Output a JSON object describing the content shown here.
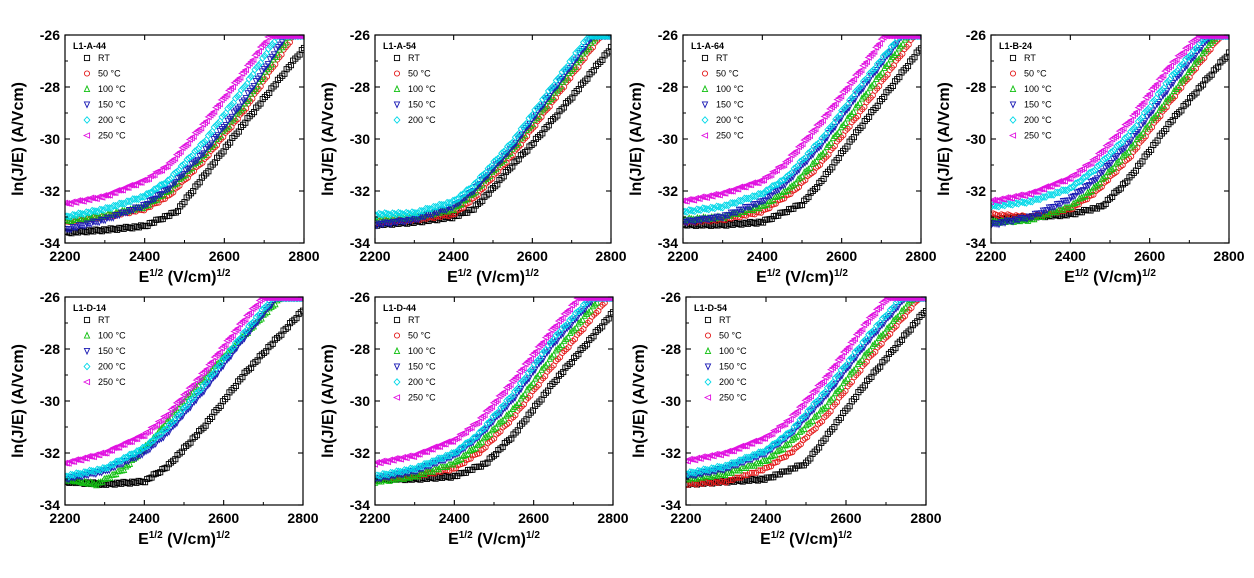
{
  "figure": {
    "x_label": "E",
    "x_label_sup": "1/2",
    "x_label_unit": " (V/cm)",
    "x_label_unit_sup": "1/2",
    "y_label": "ln(J/E) (A/Vcm)"
  },
  "legend_labels": {
    "RT": "RT",
    "50": "50 °C",
    "100": "100 °C",
    "150": "150 °C",
    "200": "200 °C",
    "250": "250 °C"
  },
  "colors": {
    "RT": "#000000",
    "50": "#e41a1a",
    "100": "#10c010",
    "150": "#1a1ab4",
    "200": "#00d8e8",
    "250": "#e010e0"
  },
  "chart_data": [
    {
      "type": "scatter",
      "title": "L1-A-44",
      "xlabel": "E1/2 (V/cm)1/2",
      "ylabel": "ln(J/E) (A/Vcm)",
      "xlim": [
        2200,
        2800
      ],
      "ylim": [
        -34,
        -26
      ],
      "xticks": [
        2200,
        2400,
        2600,
        2800
      ],
      "yticks": [
        -34,
        -32,
        -30,
        -28,
        -26
      ],
      "legend": "top-left",
      "series": [
        {
          "key": "RT",
          "x": [
            2200,
            2300,
            2400,
            2480,
            2550,
            2650,
            2800
          ],
          "y": [
            -33.6,
            -33.5,
            -33.35,
            -32.8,
            -31.4,
            -29.4,
            -26.5
          ]
        },
        {
          "key": "50",
          "x": [
            2200,
            2300,
            2400,
            2460,
            2550,
            2650,
            2775
          ],
          "y": [
            -33.2,
            -33.0,
            -32.7,
            -32.2,
            -30.8,
            -28.9,
            -26.0
          ]
        },
        {
          "key": "100",
          "x": [
            2200,
            2300,
            2400,
            2460,
            2550,
            2650,
            2765
          ],
          "y": [
            -33.15,
            -32.95,
            -32.6,
            -32.0,
            -30.6,
            -28.7,
            -26.0
          ]
        },
        {
          "key": "150",
          "x": [
            2200,
            2300,
            2400,
            2460,
            2550,
            2650,
            2755
          ],
          "y": [
            -33.5,
            -33.1,
            -32.55,
            -31.9,
            -30.5,
            -28.5,
            -26.0
          ]
        },
        {
          "key": "200",
          "x": [
            2200,
            2300,
            2400,
            2460,
            2550,
            2650,
            2735
          ],
          "y": [
            -33.0,
            -32.7,
            -32.2,
            -31.6,
            -30.1,
            -28.0,
            -26.0
          ]
        },
        {
          "key": "250",
          "x": [
            2200,
            2300,
            2400,
            2460,
            2550,
            2650,
            2715
          ],
          "y": [
            -32.5,
            -32.2,
            -31.6,
            -31.0,
            -29.4,
            -27.4,
            -26.0
          ]
        }
      ]
    },
    {
      "type": "scatter",
      "title": "L1-A-54",
      "xlabel": "E1/2 (V/cm)1/2",
      "ylabel": "ln(J/E) (A/Vcm)",
      "xlim": [
        2200,
        2800
      ],
      "ylim": [
        -34,
        -26
      ],
      "xticks": [
        2200,
        2400,
        2600,
        2800
      ],
      "yticks": [
        -34,
        -32,
        -30,
        -28,
        -26
      ],
      "legend": "top-left",
      "series": [
        {
          "key": "RT",
          "x": [
            2200,
            2300,
            2400,
            2450,
            2500,
            2550,
            2600,
            2700,
            2800
          ],
          "y": [
            -33.3,
            -33.2,
            -33.0,
            -32.7,
            -31.9,
            -31.0,
            -30.2,
            -28.4,
            -26.5
          ]
        },
        {
          "key": "50",
          "x": [
            2200,
            2300,
            2400,
            2450,
            2550,
            2650,
            2775
          ],
          "y": [
            -33.2,
            -33.1,
            -32.9,
            -32.3,
            -30.6,
            -28.6,
            -26.0
          ]
        },
        {
          "key": "100",
          "x": [
            2200,
            2300,
            2400,
            2450,
            2550,
            2650,
            2765
          ],
          "y": [
            -33.1,
            -33.0,
            -32.7,
            -32.1,
            -30.4,
            -28.4,
            -26.0
          ]
        },
        {
          "key": "150",
          "x": [
            2200,
            2300,
            2400,
            2450,
            2550,
            2650,
            2755
          ],
          "y": [
            -33.3,
            -33.1,
            -32.6,
            -32.0,
            -30.3,
            -28.2,
            -26.0
          ]
        },
        {
          "key": "200",
          "x": [
            2200,
            2300,
            2400,
            2450,
            2550,
            2650,
            2745
          ],
          "y": [
            -32.9,
            -32.85,
            -32.4,
            -31.8,
            -30.1,
            -28.0,
            -26.0
          ]
        }
      ]
    },
    {
      "type": "scatter",
      "title": "L1-A-64",
      "xlabel": "E1/2 (V/cm)1/2",
      "ylabel": "ln(J/E) (A/Vcm)",
      "xlim": [
        2200,
        2800
      ],
      "ylim": [
        -34,
        -26
      ],
      "xticks": [
        2200,
        2400,
        2600,
        2800
      ],
      "yticks": [
        -34,
        -32,
        -30,
        -28,
        -26
      ],
      "legend": "top-left",
      "series": [
        {
          "key": "RT",
          "x": [
            2200,
            2300,
            2400,
            2500,
            2550,
            2650,
            2800
          ],
          "y": [
            -33.3,
            -33.3,
            -33.2,
            -32.5,
            -31.6,
            -29.5,
            -26.5
          ]
        },
        {
          "key": "50",
          "x": [
            2200,
            2300,
            2400,
            2480,
            2550,
            2650,
            2785
          ],
          "y": [
            -33.2,
            -33.1,
            -32.8,
            -32.0,
            -30.9,
            -28.9,
            -26.0
          ]
        },
        {
          "key": "100",
          "x": [
            2200,
            2300,
            2400,
            2470,
            2550,
            2650,
            2770
          ],
          "y": [
            -33.1,
            -33.0,
            -32.6,
            -31.9,
            -30.6,
            -28.5,
            -26.0
          ]
        },
        {
          "key": "150",
          "x": [
            2200,
            2300,
            2400,
            2460,
            2550,
            2650,
            2755
          ],
          "y": [
            -33.2,
            -33.0,
            -32.4,
            -31.7,
            -30.2,
            -28.1,
            -26.0
          ]
        },
        {
          "key": "200",
          "x": [
            2200,
            2300,
            2400,
            2460,
            2550,
            2650,
            2750
          ],
          "y": [
            -32.8,
            -32.6,
            -32.1,
            -31.5,
            -30.0,
            -27.9,
            -26.0
          ]
        },
        {
          "key": "250",
          "x": [
            2200,
            2300,
            2400,
            2460,
            2550,
            2650,
            2710
          ],
          "y": [
            -32.4,
            -32.1,
            -31.6,
            -30.9,
            -29.3,
            -27.3,
            -26.0
          ]
        }
      ]
    },
    {
      "type": "scatter",
      "title": "L1-B-24",
      "xlabel": "E1/2 (V/cm)1/2",
      "ylabel": "ln(J/E) (A/Vcm)",
      "xlim": [
        2200,
        2800
      ],
      "ylim": [
        -34,
        -26
      ],
      "xticks": [
        2200,
        2400,
        2600,
        2800
      ],
      "yticks": [
        -34,
        -32,
        -30,
        -28,
        -26
      ],
      "legend": "top-left",
      "series": [
        {
          "key": "RT",
          "x": [
            2200,
            2300,
            2400,
            2480,
            2550,
            2650,
            2800
          ],
          "y": [
            -33.1,
            -33.0,
            -32.9,
            -32.6,
            -31.5,
            -29.4,
            -26.7
          ]
        },
        {
          "key": "50",
          "x": [
            2200,
            2300,
            2400,
            2460,
            2550,
            2650,
            2780
          ],
          "y": [
            -32.9,
            -33.0,
            -32.7,
            -32.1,
            -30.7,
            -28.6,
            -26.0
          ]
        },
        {
          "key": "100",
          "x": [
            2200,
            2300,
            2400,
            2460,
            2550,
            2650,
            2770
          ],
          "y": [
            -33.2,
            -33.1,
            -32.6,
            -31.9,
            -30.4,
            -28.4,
            -26.0
          ]
        },
        {
          "key": "150",
          "x": [
            2200,
            2300,
            2400,
            2460,
            2550,
            2650,
            2755
          ],
          "y": [
            -33.3,
            -33.0,
            -32.3,
            -31.6,
            -30.1,
            -28.0,
            -26.0
          ]
        },
        {
          "key": "200",
          "x": [
            2200,
            2300,
            2400,
            2460,
            2550,
            2650,
            2745
          ],
          "y": [
            -32.6,
            -32.4,
            -31.9,
            -31.2,
            -29.8,
            -27.7,
            -26.0
          ]
        },
        {
          "key": "250",
          "x": [
            2200,
            2300,
            2400,
            2460,
            2550,
            2650,
            2725
          ],
          "y": [
            -32.4,
            -32.1,
            -31.5,
            -30.8,
            -29.3,
            -27.2,
            -26.0
          ]
        }
      ]
    },
    {
      "type": "scatter",
      "title": "L1-D-14",
      "xlabel": "E1/2 (V/cm)1/2",
      "ylabel": "ln(J/E) (A/Vcm)",
      "xlim": [
        2200,
        2800
      ],
      "ylim": [
        -34,
        -26
      ],
      "xticks": [
        2200,
        2400,
        2600,
        2800
      ],
      "yticks": [
        -34,
        -32,
        -30,
        -28,
        -26
      ],
      "legend": "top-left",
      "series": [
        {
          "key": "RT",
          "x": [
            2200,
            2300,
            2400,
            2460,
            2550,
            2650,
            2800
          ],
          "y": [
            -33.1,
            -33.2,
            -33.1,
            -32.5,
            -31.0,
            -29.0,
            -26.5
          ]
        },
        {
          "key": "100",
          "x": [
            2200,
            2280,
            2350,
            2420,
            2500,
            2600,
            2745
          ],
          "y": [
            -33.0,
            -33.2,
            -32.6,
            -31.5,
            -30.0,
            -28.3,
            -26.0
          ]
        },
        {
          "key": "150",
          "x": [
            2200,
            2300,
            2400,
            2460,
            2550,
            2650,
            2735
          ],
          "y": [
            -33.0,
            -32.7,
            -32.0,
            -31.2,
            -29.6,
            -27.6,
            -26.0
          ]
        },
        {
          "key": "200",
          "x": [
            2200,
            2300,
            2400,
            2460,
            2550,
            2650,
            2725
          ],
          "y": [
            -32.9,
            -32.6,
            -31.8,
            -31.0,
            -29.4,
            -27.4,
            -26.0
          ]
        },
        {
          "key": "250",
          "x": [
            2200,
            2300,
            2400,
            2460,
            2550,
            2650,
            2700
          ],
          "y": [
            -32.4,
            -32.0,
            -31.3,
            -30.5,
            -28.9,
            -26.9,
            -26.0
          ]
        }
      ]
    },
    {
      "type": "scatter",
      "title": "L1-D-44",
      "xlabel": "E1/2 (V/cm)1/2",
      "ylabel": "ln(J/E) (A/Vcm)",
      "xlim": [
        2200,
        2800
      ],
      "ylim": [
        -34,
        -26
      ],
      "xticks": [
        2200,
        2400,
        2600,
        2800
      ],
      "yticks": [
        -34,
        -32,
        -30,
        -28,
        -26
      ],
      "legend": "top-left",
      "series": [
        {
          "key": "RT",
          "x": [
            2200,
            2300,
            2400,
            2480,
            2550,
            2650,
            2800
          ],
          "y": [
            -33.0,
            -33.0,
            -32.9,
            -32.4,
            -31.3,
            -29.3,
            -26.6
          ]
        },
        {
          "key": "50",
          "x": [
            2200,
            2300,
            2400,
            2470,
            2550,
            2650,
            2790
          ],
          "y": [
            -33.0,
            -32.9,
            -32.6,
            -31.9,
            -30.6,
            -28.6,
            -26.0
          ]
        },
        {
          "key": "100",
          "x": [
            2200,
            2300,
            2400,
            2460,
            2550,
            2650,
            2770
          ],
          "y": [
            -33.1,
            -32.9,
            -32.4,
            -31.7,
            -30.3,
            -28.2,
            -26.0
          ]
        },
        {
          "key": "150",
          "x": [
            2200,
            2300,
            2400,
            2460,
            2550,
            2650,
            2755
          ],
          "y": [
            -33.0,
            -32.7,
            -32.1,
            -31.4,
            -29.9,
            -27.8,
            -26.0
          ]
        },
        {
          "key": "200",
          "x": [
            2200,
            2300,
            2400,
            2460,
            2550,
            2650,
            2745
          ],
          "y": [
            -32.9,
            -32.6,
            -32.0,
            -31.3,
            -29.7,
            -27.6,
            -26.0
          ]
        },
        {
          "key": "250",
          "x": [
            2200,
            2300,
            2400,
            2460,
            2550,
            2650,
            2715
          ],
          "y": [
            -32.4,
            -32.1,
            -31.5,
            -30.8,
            -29.2,
            -27.2,
            -26.0
          ]
        }
      ]
    },
    {
      "type": "scatter",
      "title": "L1-D-54",
      "xlabel": "E1/2 (V/cm)1/2",
      "ylabel": "ln(J/E) (A/Vcm)",
      "xlim": [
        2200,
        2800
      ],
      "ylim": [
        -34,
        -26
      ],
      "xticks": [
        2200,
        2400,
        2600,
        2800
      ],
      "yticks": [
        -34,
        -32,
        -30,
        -28,
        -26
      ],
      "legend": "top-left",
      "series": [
        {
          "key": "RT",
          "x": [
            2200,
            2300,
            2400,
            2500,
            2550,
            2650,
            2800
          ],
          "y": [
            -33.2,
            -33.1,
            -33.0,
            -32.4,
            -31.4,
            -29.3,
            -26.5
          ]
        },
        {
          "key": "50",
          "x": [
            2200,
            2300,
            2400,
            2470,
            2550,
            2650,
            2785
          ],
          "y": [
            -33.2,
            -33.1,
            -32.6,
            -31.9,
            -30.6,
            -28.5,
            -26.0
          ]
        },
        {
          "key": "100",
          "x": [
            2200,
            2300,
            2400,
            2460,
            2550,
            2650,
            2770
          ],
          "y": [
            -33.0,
            -32.8,
            -32.3,
            -31.6,
            -30.2,
            -28.2,
            -26.0
          ]
        },
        {
          "key": "150",
          "x": [
            2200,
            2300,
            2400,
            2460,
            2550,
            2650,
            2750
          ],
          "y": [
            -32.9,
            -32.6,
            -32.0,
            -31.3,
            -29.8,
            -27.8,
            -26.0
          ]
        },
        {
          "key": "200",
          "x": [
            2200,
            2300,
            2400,
            2460,
            2550,
            2650,
            2740
          ],
          "y": [
            -32.8,
            -32.5,
            -31.9,
            -31.2,
            -29.6,
            -27.6,
            -26.0
          ]
        },
        {
          "key": "250",
          "x": [
            2200,
            2300,
            2400,
            2460,
            2550,
            2650,
            2705
          ],
          "y": [
            -32.3,
            -32.0,
            -31.4,
            -30.7,
            -29.1,
            -27.0,
            -26.0
          ]
        }
      ]
    }
  ]
}
